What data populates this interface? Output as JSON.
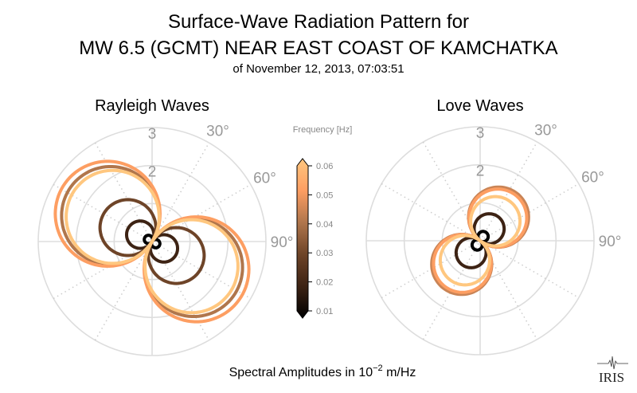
{
  "title_line1": "Surface-Wave Radiation Pattern for",
  "title_line2": "MW 6.5 (GCMT) NEAR EAST COAST OF KAMCHATKA",
  "subtitle": "of November 12, 2013, 07:03:51",
  "xlabel_prefix": "Spectral Amplitudes in ",
  "xlabel_base": "10",
  "xlabel_exp": "−2",
  "xlabel_unit": " m/Hz",
  "logo_text": "IRIS",
  "chart_data": [
    {
      "type": "polar",
      "title": "Rayleigh Waves",
      "rlim": [
        0,
        3
      ],
      "radial_ticks": [
        "2",
        "3"
      ],
      "angle_ticks": [
        "30°",
        "60°",
        "90°"
      ],
      "series": [
        {
          "frequency": 0.01,
          "amplitude": 0.22,
          "azimuth_deg": 120,
          "color": "#000000"
        },
        {
          "frequency": 0.02,
          "amplitude": 0.72,
          "azimuth_deg": 120,
          "color": "#3d2314"
        },
        {
          "frequency": 0.03,
          "amplitude": 1.47,
          "azimuth_deg": 120,
          "color": "#6e4428"
        },
        {
          "frequency": 0.04,
          "amplitude": 2.58,
          "azimuth_deg": 122,
          "color": "#b0764c"
        },
        {
          "frequency": 0.05,
          "amplitude": 2.76,
          "azimuth_deg": 122,
          "color": "#fd9e62"
        },
        {
          "frequency": 0.06,
          "amplitude": 2.45,
          "azimuth_deg": 122,
          "color": "#ffc77f"
        }
      ]
    },
    {
      "type": "polar",
      "title": "Love Waves",
      "rlim": [
        0,
        3
      ],
      "radial_ticks": [
        "2",
        "3"
      ],
      "angle_ticks": [
        "30°",
        "60°",
        "90°"
      ],
      "series": [
        {
          "frequency": 0.01,
          "amplitude": 0.27,
          "azimuth_deg": 35,
          "color": "#000000"
        },
        {
          "frequency": 0.02,
          "amplitude": 0.79,
          "azimuth_deg": 37,
          "color": "#3d2314"
        },
        {
          "frequency": 0.03,
          "amplitude": 1.55,
          "azimuth_deg": 38,
          "color": "#b0764c"
        },
        {
          "frequency": 0.04,
          "amplitude": 1.58,
          "azimuth_deg": 38,
          "color": "#c98456"
        },
        {
          "frequency": 0.05,
          "amplitude": 1.52,
          "azimuth_deg": 38,
          "color": "#fd9e62"
        },
        {
          "frequency": 0.06,
          "amplitude": 1.3,
          "azimuth_deg": 38,
          "color": "#ffc77f"
        }
      ]
    }
  ],
  "colorbar": {
    "label": "Frequency [Hz]",
    "ticks": [
      "0.01",
      "0.02",
      "0.03",
      "0.04",
      "0.05",
      "0.06"
    ],
    "range": [
      0.01,
      0.06
    ]
  }
}
